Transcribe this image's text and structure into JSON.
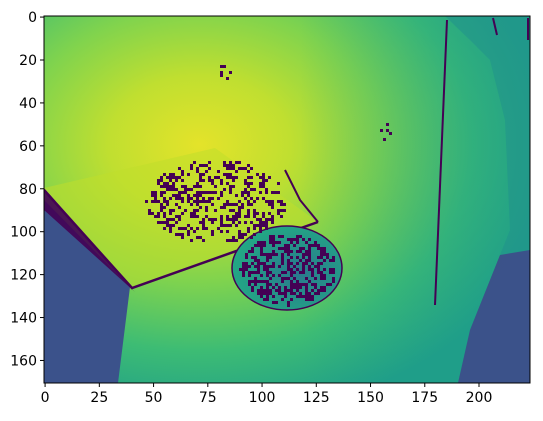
{
  "chart_data": {
    "type": "heatmap",
    "title": "",
    "xlabel": "",
    "ylabel": "",
    "xlim": [
      -0.5,
      223.5
    ],
    "ylim": [
      170.5,
      -0.5
    ],
    "x_ticks": [
      "0",
      "25",
      "50",
      "75",
      "100",
      "125",
      "150",
      "175",
      "200"
    ],
    "y_ticks": [
      "0",
      "20",
      "40",
      "60",
      "80",
      "100",
      "120",
      "140",
      "160"
    ],
    "colormap": "viridis",
    "grid": false
  }
}
